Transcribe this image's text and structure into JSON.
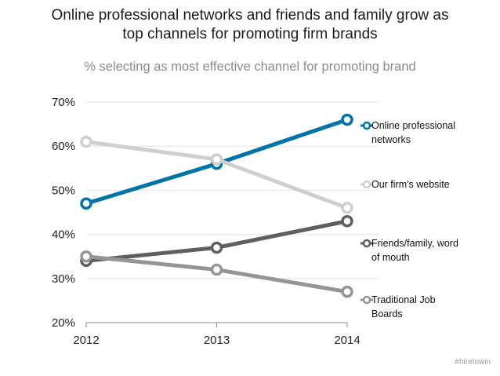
{
  "chart_data": {
    "type": "line",
    "title_lines": [
      "Online professional networks and friends and family grow as",
      "top channels for promoting firm brands"
    ],
    "subtitle": "% selecting as most effective channel for promoting brand",
    "x": [
      "2012",
      "2013",
      "2014"
    ],
    "yticks": [
      "20%",
      "30%",
      "40%",
      "50%",
      "60%",
      "70%"
    ],
    "ylim": [
      20,
      70
    ],
    "grid": true,
    "legend_position": "right",
    "series": [
      {
        "name_lines": [
          "Online professional",
          "networks"
        ],
        "values": [
          47,
          56,
          66
        ],
        "color": "#0073a8"
      },
      {
        "name_lines": [
          "Our firm's website"
        ],
        "values": [
          61,
          57,
          46
        ],
        "color": "#cfcfcf"
      },
      {
        "name_lines": [
          "Friends/family, word",
          "of mouth"
        ],
        "values": [
          34,
          37,
          43
        ],
        "color": "#5f5f5f"
      },
      {
        "name_lines": [
          "Traditional Job",
          "Boards"
        ],
        "values": [
          35,
          32,
          27
        ],
        "color": "#959595"
      }
    ]
  },
  "footer": {
    "hashtag": "#hiretowin"
  }
}
